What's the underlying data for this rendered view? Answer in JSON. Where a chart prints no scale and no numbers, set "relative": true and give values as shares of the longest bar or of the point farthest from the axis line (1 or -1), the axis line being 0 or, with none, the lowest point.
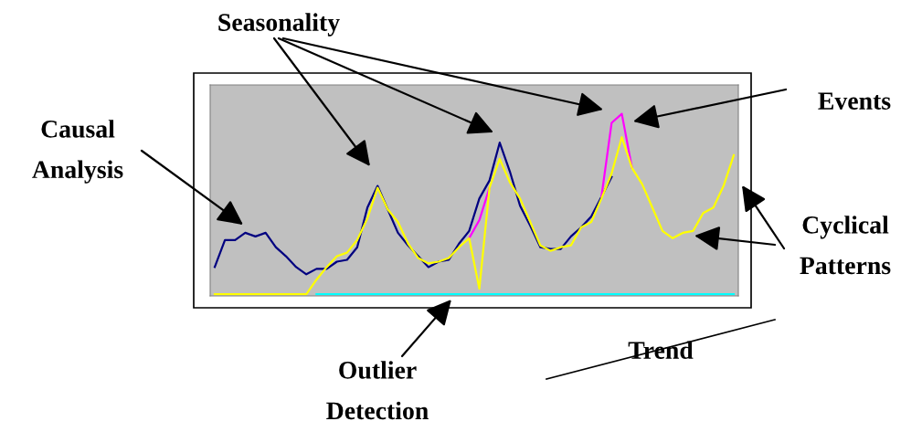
{
  "chart_data": {
    "type": "line",
    "relative": true,
    "legend": false,
    "marker": "none",
    "line_style": "solid",
    "tick_labels": false,
    "categories": [
      null,
      null,
      null,
      null,
      null,
      null,
      null,
      null,
      null,
      null,
      null,
      null,
      null,
      null,
      null,
      null,
      null,
      null,
      null,
      null,
      null,
      null,
      null,
      null,
      null,
      null,
      null,
      null,
      null,
      null,
      null,
      null,
      null,
      null,
      null,
      null,
      null,
      null,
      null,
      null,
      null,
      null,
      null,
      null,
      null,
      null,
      null,
      null,
      null,
      null,
      null,
      null
    ],
    "series": [
      {
        "color": "#00ffff",
        "values": [
          null,
          null,
          null,
          null,
          null,
          null,
          null,
          null,
          null,
          null,
          0,
          0,
          0,
          0,
          0,
          0,
          0,
          0,
          0,
          0,
          0,
          0,
          0,
          0,
          0,
          0,
          0,
          0,
          0,
          0,
          0,
          0,
          0,
          0,
          0,
          0,
          0,
          0,
          0,
          0,
          0,
          0,
          0,
          0,
          0,
          0,
          0,
          0,
          0,
          0,
          0,
          0
        ]
      },
      {
        "color": "#000080",
        "values": [
          0.15,
          0.3,
          0.3,
          0.34,
          0.32,
          0.34,
          0.26,
          0.21,
          0.15,
          0.11,
          0.14,
          0.14,
          0.18,
          0.19,
          0.26,
          0.48,
          0.6,
          0.47,
          0.34,
          0.27,
          0.21,
          0.15,
          0.18,
          0.19,
          0.28,
          0.35,
          0.53,
          0.63,
          0.84,
          0.68,
          0.49,
          0.38,
          0.26,
          0.25,
          0.25,
          0.32,
          0.37,
          0.43,
          0.54,
          0.65,
          null,
          null,
          null,
          null,
          null,
          null,
          null,
          null,
          null,
          null,
          null,
          null
        ]
      },
      {
        "color": "#ff00ff",
        "values": [
          null,
          null,
          null,
          null,
          null,
          null,
          null,
          null,
          null,
          null,
          null,
          null,
          null,
          null,
          null,
          null,
          null,
          null,
          null,
          null,
          null,
          null,
          null,
          null,
          null,
          0.31,
          0.41,
          0.59,
          null,
          null,
          null,
          null,
          null,
          null,
          null,
          null,
          null,
          null,
          0.54,
          0.95,
          1,
          0.7,
          null,
          null,
          null,
          null,
          null,
          null,
          null,
          null,
          null,
          null
        ]
      },
      {
        "color": "#ffff00",
        "values": [
          0,
          0,
          0,
          0,
          0,
          0,
          0,
          0,
          0,
          0,
          0.08,
          0.15,
          0.21,
          0.23,
          0.3,
          0.42,
          0.59,
          0.47,
          0.4,
          0.28,
          0.2,
          0.17,
          0.18,
          0.2,
          0.26,
          0.31,
          0.03,
          0.59,
          0.75,
          0.62,
          0.53,
          0.4,
          0.27,
          0.24,
          0.26,
          0.27,
          0.37,
          0.4,
          0.53,
          0.67,
          0.87,
          0.7,
          0.61,
          0.48,
          0.35,
          0.31,
          0.34,
          0.35,
          0.45,
          0.48,
          0.6,
          0.77
        ]
      }
    ],
    "annotations": [
      "Seasonality",
      "Events",
      "Causal\nAnalysis",
      "Cyclical\nPatterns",
      "Outlier\nDetection",
      "Trend"
    ]
  }
}
